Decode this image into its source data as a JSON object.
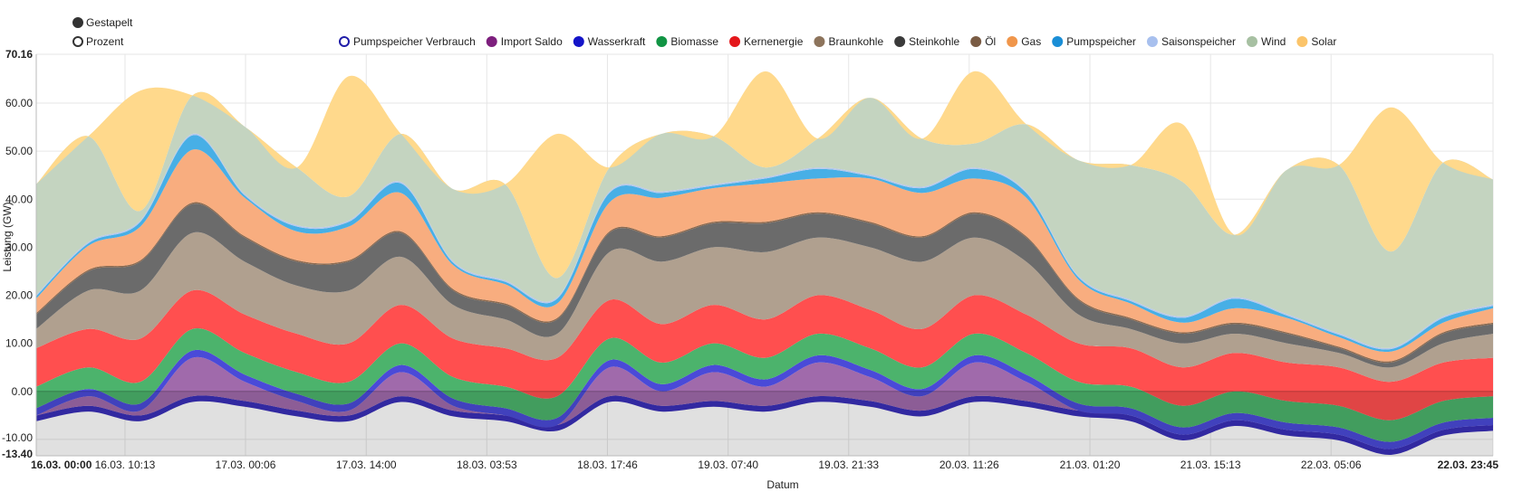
{
  "modes": [
    {
      "label": "Gestapelt",
      "selected": true
    },
    {
      "label": "Prozent",
      "selected": false
    }
  ],
  "chart_data": {
    "type": "area",
    "stacked": true,
    "ylabel": "Leistung (GW)",
    "xlabel": "Datum",
    "ylim": [
      -13.4,
      70.16
    ],
    "y_ticks": [
      "70.16",
      "60.00",
      "50.00",
      "40.00",
      "30.00",
      "20.00",
      "10.00",
      "0.00",
      "-10.00",
      "-13.40"
    ],
    "y_tick_values": [
      70.16,
      60,
      50,
      40,
      30,
      20,
      10,
      0,
      -10,
      -13.4
    ],
    "x_ticks": [
      "16.03. 00:00",
      "16.03. 10:13",
      "17.03. 00:06",
      "17.03. 14:00",
      "18.03. 03:53",
      "18.03. 17:46",
      "19.03. 07:40",
      "19.03. 21:33",
      "20.03. 11:26",
      "21.03. 01:20",
      "21.03. 15:13",
      "22.03. 05:06",
      "22.03. 23:45"
    ],
    "x_tick_hours": [
      0,
      10.22,
      24.1,
      38,
      51.88,
      65.77,
      79.67,
      93.55,
      107.43,
      121.33,
      135.22,
      149.1,
      167.75
    ],
    "x_range_hours": [
      0,
      167.75
    ],
    "grid": true,
    "legend_position": "top",
    "x_hours": [
      0,
      6,
      12,
      18,
      24,
      30,
      36,
      42,
      48,
      54,
      60,
      66,
      72,
      78,
      84,
      90,
      96,
      102,
      108,
      114,
      120,
      126,
      132,
      138,
      144,
      150,
      156,
      162,
      167.75
    ],
    "series": [
      {
        "name": "Pumpspeicher Verbrauch",
        "color": "#3a2fb8",
        "legend_color": "#1f1ca8",
        "legend_style": "ring",
        "values": [
          -5,
          -3,
          -5,
          -1,
          -2,
          -4,
          -5,
          -1,
          -4,
          -5,
          -7,
          -1,
          -3,
          -2,
          -3,
          -1,
          -2,
          -4,
          -1,
          -2,
          -4,
          -5,
          -9,
          -6,
          -8,
          -9,
          -12,
          -8,
          -7
        ]
      },
      {
        "name": "Import Saldo",
        "color": "#a06aab",
        "legend_color": "#7d1f7d",
        "values": [
          0,
          2,
          1,
          8,
          4,
          2,
          1,
          5,
          1,
          0,
          0,
          6,
          3,
          6,
          4,
          7,
          5,
          3,
          7,
          4,
          0,
          0,
          0,
          0,
          0,
          0,
          0,
          0,
          0
        ]
      },
      {
        "name": "Wasserkraft",
        "color": "#4a4ad8",
        "legend_color": "#1414c8",
        "values": [
          1.5,
          1.5,
          1.5,
          1.5,
          1.5,
          1.5,
          1.5,
          1.5,
          1.5,
          1.5,
          1.5,
          1.5,
          1.5,
          1.5,
          1.5,
          1.5,
          1.5,
          1.5,
          1.5,
          1.5,
          1.5,
          1.5,
          1.5,
          1.5,
          1.5,
          1.5,
          1.5,
          1.5,
          1.5
        ]
      },
      {
        "name": "Biomasse",
        "color": "#4cb36c",
        "legend_color": "#119444",
        "values": [
          4.5,
          4.5,
          4.5,
          4.5,
          4.5,
          4.5,
          4.5,
          4.5,
          4.5,
          4.5,
          4.5,
          4.5,
          4.5,
          4.5,
          4.5,
          4.5,
          4.5,
          4.5,
          4.5,
          4.5,
          4.5,
          4.5,
          4.5,
          4.5,
          4.5,
          4.5,
          4.5,
          4.5,
          4.5
        ]
      },
      {
        "name": "Kernenergie",
        "color": "#ff4f4f",
        "legend_color": "#e4171b",
        "values": [
          8,
          8,
          9,
          8,
          8,
          8,
          8,
          8,
          8,
          8,
          8,
          8,
          8,
          8,
          8,
          8,
          8,
          8,
          8,
          8,
          8,
          8,
          8,
          8,
          8,
          8,
          8,
          8,
          8
        ]
      },
      {
        "name": "Braunkohle",
        "color": "#b0a08f",
        "legend_color": "#8d745c",
        "values": [
          4,
          8,
          10,
          12,
          11,
          10,
          11,
          10,
          7,
          6,
          5,
          10,
          13,
          12,
          14,
          12,
          13,
          14,
          12,
          11,
          6,
          4,
          5,
          4,
          4,
          3,
          3,
          4,
          5
        ]
      },
      {
        "name": "Steinkohle",
        "color": "#6b6b6b",
        "legend_color": "#3a3a3a",
        "values": [
          3,
          4,
          6,
          6,
          5,
          5,
          6,
          5,
          3,
          3,
          3,
          4,
          5,
          5,
          6,
          5,
          5,
          5,
          5,
          5,
          3,
          2,
          2,
          2,
          2,
          1,
          1,
          2,
          2
        ]
      },
      {
        "name": "Öl",
        "color": "#8c6a50",
        "legend_color": "#7a5c44",
        "values": [
          0.3,
          0.3,
          0.3,
          0.3,
          0.3,
          0.3,
          0.3,
          0.3,
          0.3,
          0.3,
          0.3,
          0.3,
          0.3,
          0.3,
          0.3,
          0.3,
          0.3,
          0.3,
          0.3,
          0.3,
          0.3,
          0.3,
          0.3,
          0.3,
          0.3,
          0.3,
          0.3,
          0.3,
          0.3
        ]
      },
      {
        "name": "Gas",
        "color": "#f8ad7f",
        "legend_color": "#f0964b",
        "values": [
          3,
          5,
          7,
          11,
          8,
          6,
          7,
          8,
          5,
          4,
          3,
          6,
          8,
          7,
          8,
          7,
          9,
          9,
          7,
          8,
          4,
          3,
          2,
          3,
          3,
          2,
          2,
          2,
          3
        ]
      },
      {
        "name": "Pumpspeicher",
        "color": "#47afe6",
        "legend_color": "#1a8ed6",
        "values": [
          0.5,
          0.5,
          1,
          3,
          0.5,
          1,
          1,
          2,
          0.5,
          0.5,
          1,
          2,
          1,
          0.5,
          1,
          2,
          0.5,
          1,
          2,
          1,
          0.5,
          0.5,
          1,
          2,
          0.5,
          0.5,
          0.5,
          1,
          0.5
        ]
      },
      {
        "name": "Saisonspeicher",
        "color": "#b6c8ec",
        "legend_color": "#a8c0ee",
        "values": [
          0.3,
          0.3,
          0.3,
          0.3,
          0.3,
          0.3,
          0.3,
          0.3,
          0.3,
          0.3,
          0.3,
          0.3,
          0.3,
          0.3,
          0.3,
          0.3,
          0.3,
          0.3,
          0.3,
          0.3,
          0.3,
          0.3,
          0.3,
          0.3,
          0.3,
          0.3,
          0.3,
          0.3,
          0.3
        ]
      },
      {
        "name": "Wind",
        "color": "#c4d4c0",
        "legend_color": "#a7c0a2",
        "values": [
          23,
          22,
          2,
          8,
          14,
          12,
          5,
          10,
          15,
          20,
          4,
          5,
          12,
          10,
          2,
          6,
          16,
          10,
          5,
          14,
          24,
          28,
          28,
          13,
          30,
          35,
          20,
          32,
          26
        ]
      },
      {
        "name": "Solar",
        "color": "#ffd98c",
        "legend_color": "#fbc46a",
        "values": [
          0,
          0,
          25,
          0,
          0,
          0,
          25,
          0,
          0,
          0,
          30,
          0,
          0,
          0,
          20,
          0,
          0,
          0,
          15,
          0,
          0,
          0,
          12,
          0,
          0,
          0,
          30,
          0,
          0
        ]
      }
    ]
  }
}
